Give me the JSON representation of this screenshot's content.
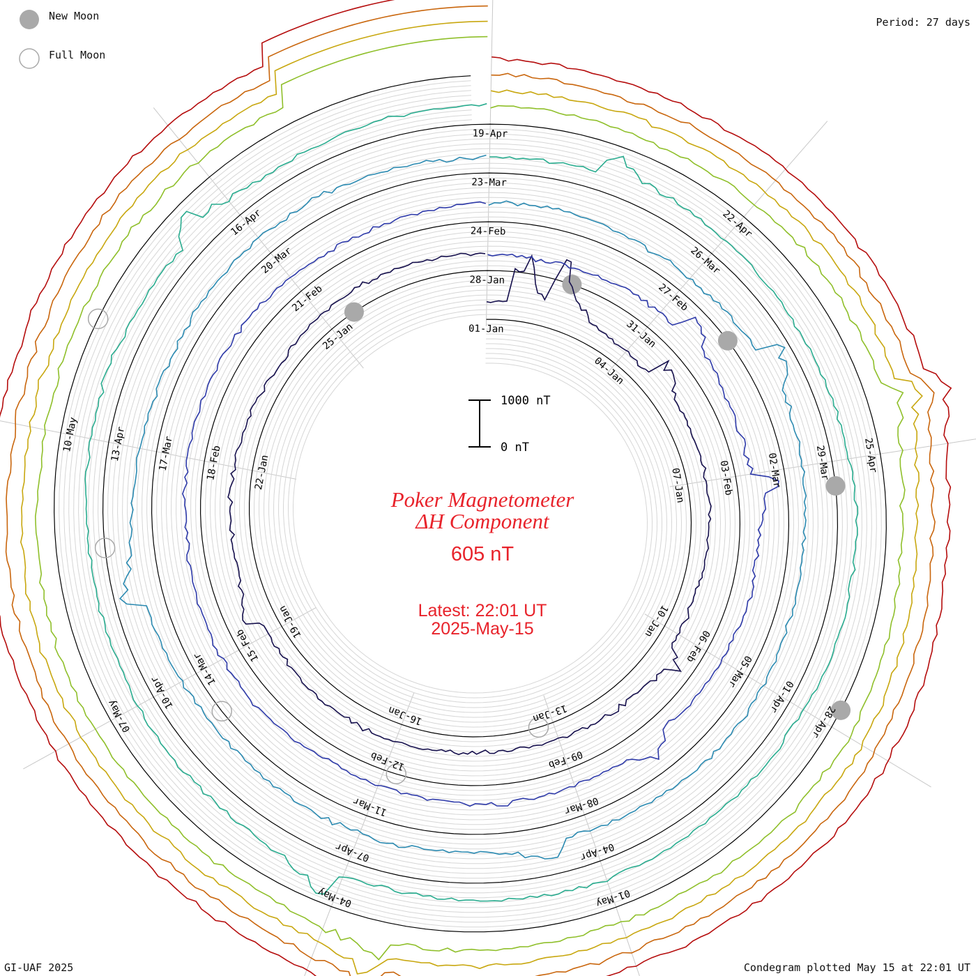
{
  "legend": {
    "new_moon_label": "New Moon",
    "full_moon_label": "Full Moon",
    "new_moon_color": "#a9a9a9",
    "full_moon_stroke": "#a9a9a9"
  },
  "period_label": "Period: 27 days",
  "footer_left": "GI-UAF 2025",
  "footer_right": "Condegram plotted May 15 at 22:01 UT",
  "title_line1": "Poker Magnetometer",
  "title_line2": "ΔH Component",
  "current_value": "605 nT",
  "latest_line1": "Latest: 22:01 UT",
  "latest_line2": "2025-May-15",
  "title_color": "#e8232b",
  "scale_bar": {
    "top_label": "1000 nT",
    "bottom_label": "0 nT",
    "value_nT": 1000
  },
  "chart_data": {
    "type": "line",
    "form": "spiral condegram",
    "period_days": 27,
    "start_date": "2025-01-01",
    "end": "2025-05-15 22:01 UT",
    "units": "nT",
    "latest_value": 605,
    "date_labels": [
      {
        "label": "01-Jan",
        "day": 0
      },
      {
        "label": "04-Jan",
        "day": 3
      },
      {
        "label": "07-Jan",
        "day": 6
      },
      {
        "label": "10-Jan",
        "day": 9
      },
      {
        "label": "13-Jan",
        "day": 12
      },
      {
        "label": "16-Jan",
        "day": 15
      },
      {
        "label": "19-Jan",
        "day": 18
      },
      {
        "label": "22-Jan",
        "day": 21
      },
      {
        "label": "25-Jan",
        "day": 24
      },
      {
        "label": "28-Jan",
        "day": 27
      },
      {
        "label": "31-Jan",
        "day": 30
      },
      {
        "label": "03-Feb",
        "day": 33
      },
      {
        "label": "06-Feb",
        "day": 36
      },
      {
        "label": "09-Feb",
        "day": 39
      },
      {
        "label": "12-Feb",
        "day": 42
      },
      {
        "label": "15-Feb",
        "day": 45
      },
      {
        "label": "18-Feb",
        "day": 48
      },
      {
        "label": "21-Feb",
        "day": 51
      },
      {
        "label": "24-Feb",
        "day": 54
      },
      {
        "label": "27-Feb",
        "day": 57
      },
      {
        "label": "02-Mar",
        "day": 60
      },
      {
        "label": "05-Mar",
        "day": 63
      },
      {
        "label": "08-Mar",
        "day": 66
      },
      {
        "label": "11-Mar",
        "day": 69
      },
      {
        "label": "14-Mar",
        "day": 72
      },
      {
        "label": "17-Mar",
        "day": 75
      },
      {
        "label": "20-Mar",
        "day": 78
      },
      {
        "label": "23-Mar",
        "day": 81
      },
      {
        "label": "26-Mar",
        "day": 84
      },
      {
        "label": "29-Mar",
        "day": 87
      },
      {
        "label": "01-Apr",
        "day": 90
      },
      {
        "label": "04-Apr",
        "day": 93
      },
      {
        "label": "07-Apr",
        "day": 96
      },
      {
        "label": "10-Apr",
        "day": 99
      },
      {
        "label": "13-Apr",
        "day": 102
      },
      {
        "label": "16-Apr",
        "day": 105
      },
      {
        "label": "19-Apr",
        "day": 108
      },
      {
        "label": "22-Apr",
        "day": 111
      },
      {
        "label": "25-Apr",
        "day": 114
      },
      {
        "label": "28-Apr",
        "day": 117
      },
      {
        "label": "01-May",
        "day": 120
      },
      {
        "label": "04-May",
        "day": 123
      },
      {
        "label": "07-May",
        "day": 126
      },
      {
        "label": "10-May",
        "day": 129
      }
    ],
    "new_moons_day": [
      -2.5,
      28.5,
      58,
      87.3,
      116.8
    ],
    "full_moons_day": [
      12.3,
      41.8,
      71.4,
      100.8,
      130.2
    ],
    "series": [
      {
        "cycle": 1,
        "color": "#16104d",
        "start_day": 0,
        "end_day": 27
      },
      {
        "cycle": 2,
        "color": "#2e3aa9",
        "start_day": 27,
        "end_day": 54
      },
      {
        "cycle": 3,
        "color": "#2b8ab1",
        "start_day": 54,
        "end_day": 81
      },
      {
        "cycle": 4,
        "color": "#29ac8f",
        "start_day": 81,
        "end_day": 108
      },
      {
        "cycle": 5,
        "color": "#8fbf2a",
        "start_day": 108,
        "end_day": 135
      },
      {
        "cycle": 6,
        "color": "#c8a70f",
        "start_day": 108,
        "end_day": 135
      },
      {
        "cycle": 7,
        "color": "#c9660d",
        "start_day": 108,
        "end_day": 135
      },
      {
        "cycle": 8,
        "color": "#b50d0d",
        "start_day": 108,
        "end_day": 135
      }
    ],
    "disturbance_events_day": [
      {
        "day": 0.6,
        "peak_nT": 1500
      },
      {
        "day": 1.3,
        "peak_nT": 1400
      },
      {
        "day": 3.8,
        "peak_nT": 800
      },
      {
        "day": 9.5,
        "peak_nT": 500
      },
      {
        "day": 18.4,
        "peak_nT": 700
      },
      {
        "day": 30.5,
        "peak_nT": 650
      },
      {
        "day": 33.2,
        "peak_nT": 700
      },
      {
        "day": 37.6,
        "peak_nT": 600
      },
      {
        "day": 58.5,
        "peak_nT": 700
      },
      {
        "day": 66.5,
        "peak_nT": 650
      },
      {
        "day": 73.2,
        "peak_nT": 600
      },
      {
        "day": 82.5,
        "peak_nT": 600
      },
      {
        "day": 96.2,
        "peak_nT": 650
      },
      {
        "day": 104.5,
        "peak_nT": 700
      },
      {
        "day": 113.5,
        "peak_nT": 550
      },
      {
        "day": 122.5,
        "peak_nT": 600
      }
    ]
  }
}
